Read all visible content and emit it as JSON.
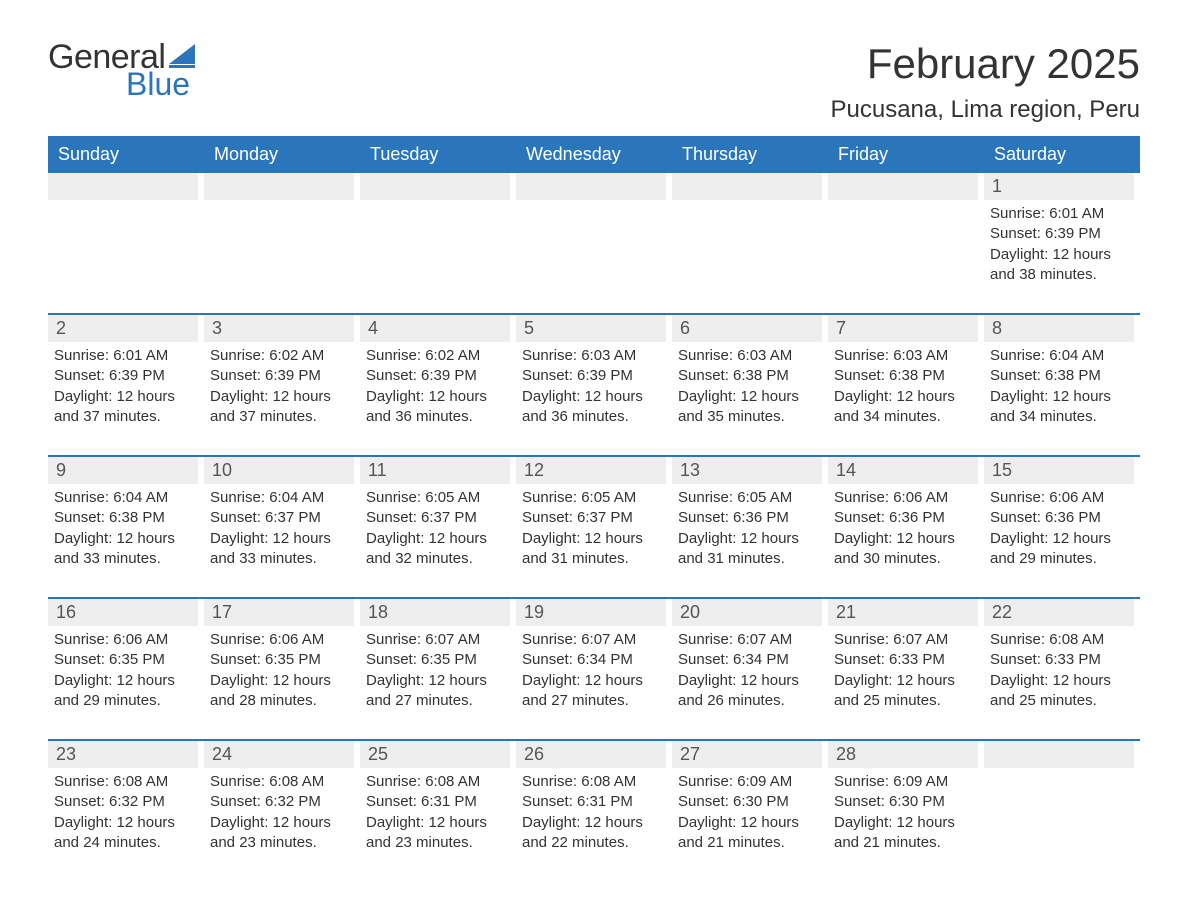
{
  "logo": {
    "word1": "General",
    "word2": "Blue",
    "sail_color": "#2b76ba",
    "text_color": "#333333"
  },
  "title": "February 2025",
  "location": "Pucusana, Lima region, Peru",
  "colors": {
    "header_bg": "#2b76ba",
    "header_text": "#ffffff",
    "row_accent": "#2b76ba",
    "daynum_bg": "#eeeeee",
    "body_text": "#333333"
  },
  "weekdays": [
    "Sunday",
    "Monday",
    "Tuesday",
    "Wednesday",
    "Thursday",
    "Friday",
    "Saturday"
  ],
  "weeks": [
    [
      {
        "day": "",
        "lines": []
      },
      {
        "day": "",
        "lines": []
      },
      {
        "day": "",
        "lines": []
      },
      {
        "day": "",
        "lines": []
      },
      {
        "day": "",
        "lines": []
      },
      {
        "day": "",
        "lines": []
      },
      {
        "day": "1",
        "lines": [
          "Sunrise: 6:01 AM",
          "Sunset: 6:39 PM",
          "Daylight: 12 hours and 38 minutes."
        ]
      }
    ],
    [
      {
        "day": "2",
        "lines": [
          "Sunrise: 6:01 AM",
          "Sunset: 6:39 PM",
          "Daylight: 12 hours and 37 minutes."
        ]
      },
      {
        "day": "3",
        "lines": [
          "Sunrise: 6:02 AM",
          "Sunset: 6:39 PM",
          "Daylight: 12 hours and 37 minutes."
        ]
      },
      {
        "day": "4",
        "lines": [
          "Sunrise: 6:02 AM",
          "Sunset: 6:39 PM",
          "Daylight: 12 hours and 36 minutes."
        ]
      },
      {
        "day": "5",
        "lines": [
          "Sunrise: 6:03 AM",
          "Sunset: 6:39 PM",
          "Daylight: 12 hours and 36 minutes."
        ]
      },
      {
        "day": "6",
        "lines": [
          "Sunrise: 6:03 AM",
          "Sunset: 6:38 PM",
          "Daylight: 12 hours and 35 minutes."
        ]
      },
      {
        "day": "7",
        "lines": [
          "Sunrise: 6:03 AM",
          "Sunset: 6:38 PM",
          "Daylight: 12 hours and 34 minutes."
        ]
      },
      {
        "day": "8",
        "lines": [
          "Sunrise: 6:04 AM",
          "Sunset: 6:38 PM",
          "Daylight: 12 hours and 34 minutes."
        ]
      }
    ],
    [
      {
        "day": "9",
        "lines": [
          "Sunrise: 6:04 AM",
          "Sunset: 6:38 PM",
          "Daylight: 12 hours and 33 minutes."
        ]
      },
      {
        "day": "10",
        "lines": [
          "Sunrise: 6:04 AM",
          "Sunset: 6:37 PM",
          "Daylight: 12 hours and 33 minutes."
        ]
      },
      {
        "day": "11",
        "lines": [
          "Sunrise: 6:05 AM",
          "Sunset: 6:37 PM",
          "Daylight: 12 hours and 32 minutes."
        ]
      },
      {
        "day": "12",
        "lines": [
          "Sunrise: 6:05 AM",
          "Sunset: 6:37 PM",
          "Daylight: 12 hours and 31 minutes."
        ]
      },
      {
        "day": "13",
        "lines": [
          "Sunrise: 6:05 AM",
          "Sunset: 6:36 PM",
          "Daylight: 12 hours and 31 minutes."
        ]
      },
      {
        "day": "14",
        "lines": [
          "Sunrise: 6:06 AM",
          "Sunset: 6:36 PM",
          "Daylight: 12 hours and 30 minutes."
        ]
      },
      {
        "day": "15",
        "lines": [
          "Sunrise: 6:06 AM",
          "Sunset: 6:36 PM",
          "Daylight: 12 hours and 29 minutes."
        ]
      }
    ],
    [
      {
        "day": "16",
        "lines": [
          "Sunrise: 6:06 AM",
          "Sunset: 6:35 PM",
          "Daylight: 12 hours and 29 minutes."
        ]
      },
      {
        "day": "17",
        "lines": [
          "Sunrise: 6:06 AM",
          "Sunset: 6:35 PM",
          "Daylight: 12 hours and 28 minutes."
        ]
      },
      {
        "day": "18",
        "lines": [
          "Sunrise: 6:07 AM",
          "Sunset: 6:35 PM",
          "Daylight: 12 hours and 27 minutes."
        ]
      },
      {
        "day": "19",
        "lines": [
          "Sunrise: 6:07 AM",
          "Sunset: 6:34 PM",
          "Daylight: 12 hours and 27 minutes."
        ]
      },
      {
        "day": "20",
        "lines": [
          "Sunrise: 6:07 AM",
          "Sunset: 6:34 PM",
          "Daylight: 12 hours and 26 minutes."
        ]
      },
      {
        "day": "21",
        "lines": [
          "Sunrise: 6:07 AM",
          "Sunset: 6:33 PM",
          "Daylight: 12 hours and 25 minutes."
        ]
      },
      {
        "day": "22",
        "lines": [
          "Sunrise: 6:08 AM",
          "Sunset: 6:33 PM",
          "Daylight: 12 hours and 25 minutes."
        ]
      }
    ],
    [
      {
        "day": "23",
        "lines": [
          "Sunrise: 6:08 AM",
          "Sunset: 6:32 PM",
          "Daylight: 12 hours and 24 minutes."
        ]
      },
      {
        "day": "24",
        "lines": [
          "Sunrise: 6:08 AM",
          "Sunset: 6:32 PM",
          "Daylight: 12 hours and 23 minutes."
        ]
      },
      {
        "day": "25",
        "lines": [
          "Sunrise: 6:08 AM",
          "Sunset: 6:31 PM",
          "Daylight: 12 hours and 23 minutes."
        ]
      },
      {
        "day": "26",
        "lines": [
          "Sunrise: 6:08 AM",
          "Sunset: 6:31 PM",
          "Daylight: 12 hours and 22 minutes."
        ]
      },
      {
        "day": "27",
        "lines": [
          "Sunrise: 6:09 AM",
          "Sunset: 6:30 PM",
          "Daylight: 12 hours and 21 minutes."
        ]
      },
      {
        "day": "28",
        "lines": [
          "Sunrise: 6:09 AM",
          "Sunset: 6:30 PM",
          "Daylight: 12 hours and 21 minutes."
        ]
      },
      {
        "day": "",
        "lines": []
      }
    ]
  ]
}
